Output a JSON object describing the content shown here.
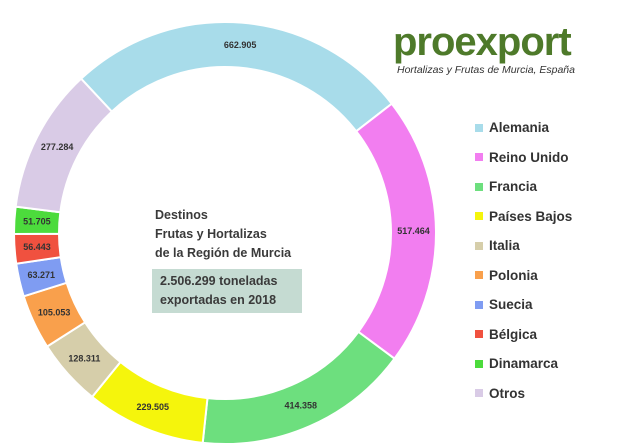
{
  "logo": {
    "name": "proexport",
    "subtitle": "Hortalizas y Frutas de Murcia, España"
  },
  "center": {
    "line1": "Destinos",
    "line2": "Frutas y Hortalizas",
    "line3": "de la Región de Murcia",
    "total_line1": "2.506.299 toneladas",
    "total_line2": "exportadas en 2018"
  },
  "chart_data": {
    "type": "pie",
    "subtype": "donut",
    "title": "Destinos Frutas y Hortalizas de la Región de Murcia",
    "legend_position": "right",
    "categories": [
      "Alemania",
      "Reino Unido",
      "Francia",
      "Países Bajos",
      "Italia",
      "Polonia",
      "Suecia",
      "Bélgica",
      "Dinamarca",
      "Otros"
    ],
    "values": [
      662905,
      517464,
      414358,
      229505,
      128311,
      105053,
      63271,
      56443,
      51705,
      277284
    ],
    "labels": [
      "662.905",
      "517.464",
      "414.358",
      "229.505",
      "128.311",
      "105.053",
      "63.271",
      "56.443",
      "51.705",
      "277.284"
    ],
    "colors": [
      "#a8dcea",
      "#f27ef0",
      "#6ddf7e",
      "#f5f50c",
      "#d6ceaa",
      "#f9a04c",
      "#7f9cf2",
      "#f0513f",
      "#4cdb3c",
      "#d9cbe6"
    ],
    "total": "2.506.299"
  }
}
